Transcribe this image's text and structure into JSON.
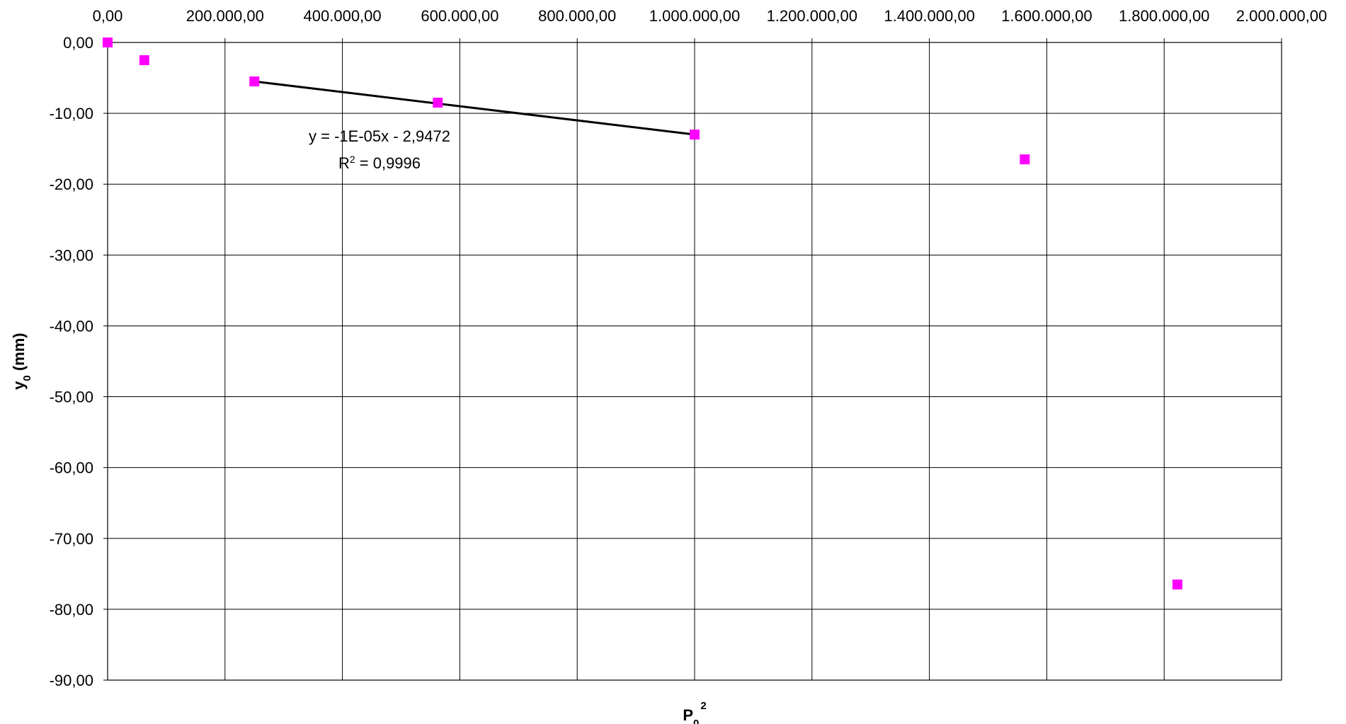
{
  "chart_data": {
    "type": "scatter",
    "title": "",
    "xlabel": "P",
    "xlabel_sub": "0",
    "xlabel_sup": "2",
    "ylabel": "y",
    "ylabel_sub": "0",
    "ylabel_suffix": " (mm)",
    "xlim": [
      0,
      2000000
    ],
    "ylim": [
      -90,
      0
    ],
    "x_axis_position": "top",
    "grid": true,
    "x_ticks": [
      0,
      200000,
      400000,
      600000,
      800000,
      1000000,
      1200000,
      1400000,
      1600000,
      1800000,
      2000000
    ],
    "x_tick_labels": [
      "0,00",
      "200.000,00",
      "400.000,00",
      "600.000,00",
      "800.000,00",
      "1.000.000,00",
      "1.200.000,00",
      "1.400.000,00",
      "1.600.000,00",
      "1.800.000,00",
      "2.000.000,00"
    ],
    "y_ticks": [
      0,
      -10,
      -20,
      -30,
      -40,
      -50,
      -60,
      -70,
      -80,
      -90
    ],
    "y_tick_labels": [
      "0,00",
      "-10,00",
      "-20,00",
      "-30,00",
      "-40,00",
      "-50,00",
      "-60,00",
      "-70,00",
      "-80,00",
      "-90,00"
    ],
    "series": [
      {
        "marker": "square",
        "color": "#ff00ff",
        "points": [
          {
            "x": 0,
            "y": 0
          },
          {
            "x": 62500,
            "y": -2.5
          },
          {
            "x": 250000,
            "y": -5.5
          },
          {
            "x": 562500,
            "y": -8.5
          },
          {
            "x": 1000000,
            "y": -13.0
          },
          {
            "x": 1562500,
            "y": -16.5
          },
          {
            "x": 1822500,
            "y": -76.5
          }
        ]
      }
    ],
    "trendline": {
      "color": "#000000",
      "x_start": 250000,
      "y_start": -5.5,
      "x_end": 1000000,
      "y_end": -13.0,
      "equation": "y = -1E-05x - 2,9472",
      "r2_prefix": "R",
      "r2_sup": "2",
      "r2_value": " = 0,9996"
    }
  }
}
